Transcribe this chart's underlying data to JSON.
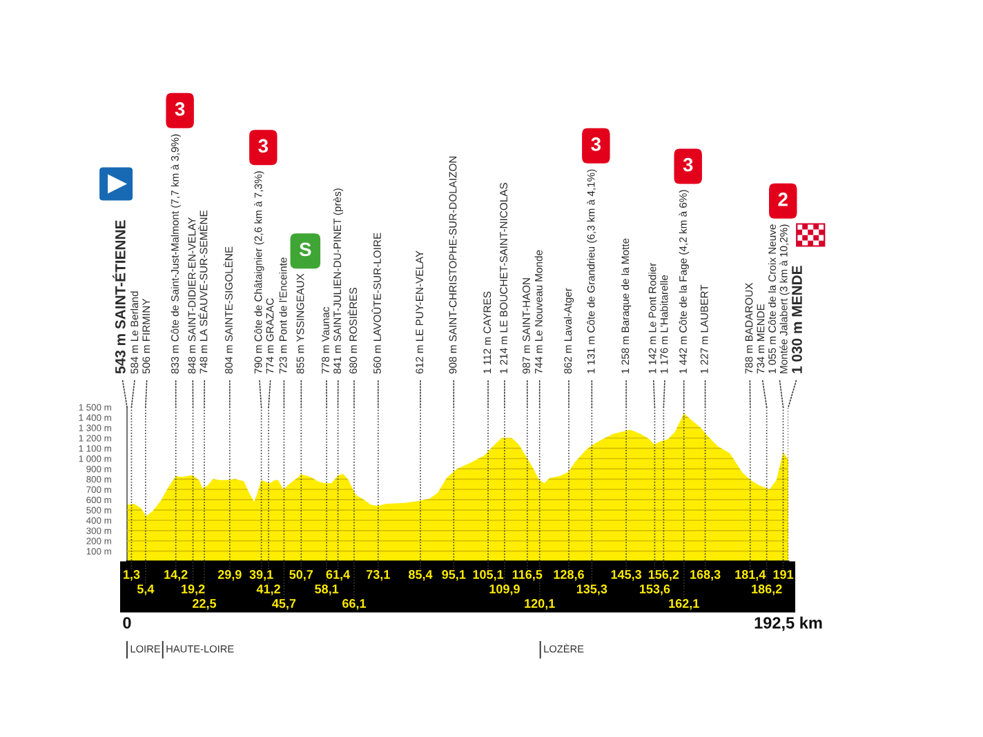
{
  "chart_data": {
    "type": "area",
    "color": "#ffed00",
    "x": [
      0,
      2,
      4,
      5.5,
      7.5,
      10,
      12,
      14.2,
      16,
      19,
      21,
      22,
      23.5,
      25,
      27,
      29,
      31.5,
      34,
      35.5,
      37,
      38,
      39.1,
      41.5,
      43,
      44,
      45.5,
      47.5,
      49.5,
      50.7,
      51.5,
      53.5,
      55.5,
      57.5,
      59.5,
      61.5,
      63,
      64.5,
      66.5,
      69,
      71,
      73,
      75.5,
      81,
      85,
      88,
      90.5,
      93,
      96,
      100,
      104,
      106.5,
      109,
      112,
      114,
      116,
      118,
      120,
      121.5,
      123,
      126,
      128.5,
      130.5,
      133.5,
      135.3,
      138.5,
      141.5,
      144,
      146.5,
      149.5,
      152,
      153.5,
      155.5,
      157.5,
      159.5,
      162.1,
      164.5,
      167,
      169,
      172,
      175.5,
      179,
      181.5,
      184,
      187,
      189,
      191,
      192.5
    ],
    "values": [
      550,
      560,
      520,
      440,
      490,
      600,
      720,
      830,
      820,
      840,
      790,
      710,
      740,
      800,
      790,
      790,
      800,
      780,
      670,
      580,
      670,
      790,
      760,
      790,
      790,
      700,
      760,
      810,
      850,
      840,
      820,
      780,
      760,
      760,
      840,
      850,
      790,
      650,
      600,
      550,
      540,
      560,
      570,
      590,
      610,
      670,
      810,
      900,
      960,
      1030,
      1120,
      1200,
      1200,
      1140,
      1030,
      920,
      790,
      760,
      810,
      830,
      870,
      970,
      1080,
      1130,
      1190,
      1240,
      1260,
      1280,
      1240,
      1190,
      1140,
      1170,
      1190,
      1260,
      1440,
      1370,
      1300,
      1220,
      1120,
      1050,
      870,
      790,
      740,
      700,
      790,
      1060,
      990
    ],
    "xlim": [
      0,
      192.5
    ],
    "ylim": [
      0,
      1500
    ],
    "xticks": [
      0,
      {
        "value": 192.5,
        "label": "192,5 km"
      }
    ],
    "yticks": [
      {
        "value": 100,
        "label": "100 m"
      },
      {
        "value": 200,
        "label": "200 m"
      },
      {
        "value": 300,
        "label": "300 m"
      },
      {
        "value": 400,
        "label": "400 m"
      },
      {
        "value": 500,
        "label": "500 m"
      },
      {
        "value": 600,
        "label": "600 m"
      },
      {
        "value": 700,
        "label": "700 m"
      },
      {
        "value": 800,
        "label": "800 m"
      },
      {
        "value": 900,
        "label": "900 m"
      },
      {
        "value": 1000,
        "label": "1 000 m"
      },
      {
        "value": 1100,
        "label": "1 100 m"
      },
      {
        "value": 1200,
        "label": "1 200 m"
      },
      {
        "value": 1300,
        "label": "1 300 m"
      },
      {
        "value": 1400,
        "label": "1 400 m"
      },
      {
        "value": 1500,
        "label": "1 500 m"
      }
    ],
    "grid": true,
    "ref_lines": [
      {
        "axis": "x",
        "value": 1.3,
        "label": "1,3",
        "line_style": "dotted"
      },
      {
        "axis": "x",
        "value": 5.4,
        "label": "5,4",
        "line_style": "dotted"
      },
      {
        "axis": "x",
        "value": 14.2,
        "label": "14,2",
        "line_style": "dotted"
      },
      {
        "axis": "x",
        "value": 19.2,
        "label": "19,2",
        "line_style": "dotted"
      },
      {
        "axis": "x",
        "value": 22.5,
        "label": "22,5",
        "line_style": "dotted"
      },
      {
        "axis": "x",
        "value": 29.9,
        "label": "29,9",
        "line_style": "dotted"
      },
      {
        "axis": "x",
        "value": 39.1,
        "label": "39,1",
        "line_style": "dotted"
      },
      {
        "axis": "x",
        "value": 41.2,
        "label": "41,2",
        "line_style": "dotted"
      },
      {
        "axis": "x",
        "value": 45.7,
        "label": "45,7",
        "line_style": "dotted"
      },
      {
        "axis": "x",
        "value": 50.7,
        "label": "50,7",
        "line_style": "dotted"
      },
      {
        "axis": "x",
        "value": 58.1,
        "label": "58,1",
        "line_style": "dotted"
      },
      {
        "axis": "x",
        "value": 61.4,
        "label": "61,4",
        "line_style": "dotted"
      },
      {
        "axis": "x",
        "value": 66.1,
        "label": "66,1",
        "line_style": "dotted"
      },
      {
        "axis": "x",
        "value": 73.1,
        "label": "73,1",
        "line_style": "dotted"
      },
      {
        "axis": "x",
        "value": 85.4,
        "label": "85,4",
        "line_style": "dotted"
      },
      {
        "axis": "x",
        "value": 95.1,
        "label": "95,1",
        "line_style": "dotted"
      },
      {
        "axis": "x",
        "value": 105.1,
        "label": "105,1",
        "line_style": "dotted"
      },
      {
        "axis": "x",
        "value": 109.9,
        "label": "109,9",
        "line_style": "dotted"
      },
      {
        "axis": "x",
        "value": 116.5,
        "label": "116,5",
        "line_style": "dotted"
      },
      {
        "axis": "x",
        "value": 120.1,
        "label": "120,1",
        "line_style": "dotted"
      },
      {
        "axis": "x",
        "value": 128.6,
        "label": "128,6",
        "line_style": "dotted"
      },
      {
        "axis": "x",
        "value": 135.3,
        "label": "135,3",
        "line_style": "dotted"
      },
      {
        "axis": "x",
        "value": 145.3,
        "label": "145,3",
        "line_style": "dotted"
      },
      {
        "axis": "x",
        "value": 153.6,
        "label": "153,6",
        "line_style": "dotted"
      },
      {
        "axis": "x",
        "value": 156.2,
        "label": "156,2",
        "line_style": "dotted"
      },
      {
        "axis": "x",
        "value": 162.1,
        "label": "162,1",
        "line_style": "dotted"
      },
      {
        "axis": "x",
        "value": 168.3,
        "label": "168,3",
        "line_style": "dotted"
      },
      {
        "axis": "x",
        "value": 181.4,
        "label": "181,4",
        "line_style": "dotted"
      },
      {
        "axis": "x",
        "value": 186.2,
        "label": "186,2",
        "line_style": "dotted"
      },
      {
        "axis": "x",
        "value": 191,
        "label": "191",
        "line_style": "dotted"
      },
      {
        "axis": "x",
        "value": 0,
        "label": "LOIRE",
        "line_style": "solid"
      },
      {
        "axis": "x",
        "value": 10.4,
        "label": "HAUTE-LOIRE",
        "line_style": "solid"
      },
      {
        "axis": "x",
        "value": 120.3,
        "label": "LOZÈRE",
        "line_style": "solid"
      }
    ],
    "annotations": [
      {
        "text": "543 m SAINT-ÉTIENNE",
        "x": 0
      },
      {
        "text": "584 m Le Berland",
        "x": 1.3
      },
      {
        "text": "506 m FIRMINY",
        "x": 5.4
      },
      {
        "text": "833 m Côte de Saint-Just-Malmont (7,7 km à 3,9%)",
        "x": 14.2
      },
      "3",
      {
        "text": "848 m SAINT-DIDIER-EN-VELAY",
        "x": 19.2
      },
      {
        "text": "748 m LA SÉAUVE-SUR-SEMÈNE",
        "x": 22.5
      },
      {
        "text": "804 m SAINTE-SIGOLÈNE",
        "x": 29.9
      },
      {
        "text": "790 m Côte de Châtaignier (2,6 km à 7,3%)",
        "x": 39.1
      },
      "3",
      {
        "text": "774 m GRAZAC",
        "x": 41.2
      },
      {
        "text": "723 m Pont de l'Enceinte",
        "x": 45.7
      },
      {
        "text": "855 m YSSINGEAUX",
        "x": 50.7
      },
      "S",
      {
        "text": "778 m Vaunac",
        "x": 58.1
      },
      {
        "text": "841 m SAINT-JULIEN-DU-PINET (près)",
        "x": 61.4
      },
      {
        "text": "680 m ROSIÈRES",
        "x": 66.1
      },
      {
        "text": "560 m LAVOÛTE-SUR-LOIRE",
        "x": 73.1
      },
      {
        "text": "612 m LE PUY-EN-VELAY",
        "x": 85.4
      },
      {
        "text": "908 m SAINT-CHRISTOPHE-SUR-DOLAIZON",
        "x": 95.1
      },
      {
        "text": "1 112 m CAYRES",
        "x": 105.1
      },
      {
        "text": "1 214 m LE BOUCHET-SAINT-NICOLAS",
        "x": 109.9
      },
      {
        "text": "987 m SAINT-HAON",
        "x": 116.5
      },
      {
        "text": "744 m Le Nouveau Monde",
        "x": 120.1
      },
      {
        "text": "862 m Laval-Atger",
        "x": 128.6
      },
      {
        "text": "1 131 m Côte de Grandrieu (6,3 km à 4,1%)",
        "x": 135.3
      },
      "3",
      {
        "text": "1 258 m Baraque de la Motte",
        "x": 145.3
      },
      {
        "text": "1 142 m Le Pont Rodier",
        "x": 153.6
      },
      {
        "text": "1 176 m L'Habitarelle",
        "x": 156.2
      },
      {
        "text": "1 442 m Côte de la Fage (4,2 km à 6%)",
        "x": 162.1
      },
      "3",
      {
        "text": "1 227 m LAUBERT",
        "x": 168.3
      },
      {
        "text": "788 m BADAROUX",
        "x": 181.4
      },
      {
        "text": "734 m MENDE",
        "x": 186.2
      },
      {
        "text": "1 055 m Côte de la Croix Neuve\nMontée Jalabert (3 km à 10,2%)",
        "x": 191
      },
      "2",
      {
        "text": "1 030 m MENDE",
        "x": 192.5
      }
    ]
  }
}
